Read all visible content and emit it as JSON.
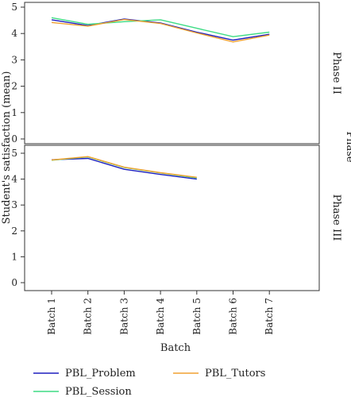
{
  "chart_data": {
    "type": "line",
    "xlabel": "Batch",
    "ylabel": "Student's satisfaction (mean)",
    "facet_label": "Phase",
    "categories": [
      "Batch 1",
      "Batch 2",
      "Batch 3",
      "Batch 4",
      "Batch 5",
      "Batch 6",
      "Batch 7"
    ],
    "ylim": [
      0,
      5
    ],
    "yticks": [
      "0",
      "1",
      "2",
      "3",
      "4",
      "5"
    ],
    "grid": false,
    "legend_position": "bottom",
    "panels": [
      {
        "label": "Phase II",
        "series": [
          {
            "name": "PBL_Problem",
            "color": "#1f1fbf",
            "values": [
              4.52,
              4.3,
              4.55,
              4.4,
              4.05,
              3.75,
              3.97
            ]
          },
          {
            "name": "PBL_Session",
            "color": "#3ddc84",
            "values": [
              4.6,
              4.35,
              4.45,
              4.52,
              4.2,
              3.88,
              4.05
            ]
          },
          {
            "name": "PBL_Tutors",
            "color": "#f0a030",
            "values": [
              4.42,
              4.28,
              4.53,
              4.38,
              4.02,
              3.68,
              3.94
            ]
          }
        ]
      },
      {
        "label": "Phase III",
        "series": [
          {
            "name": "PBL_Problem",
            "color": "#1f1fbf",
            "values": [
              4.75,
              4.8,
              4.38,
              4.18,
              4.0,
              null,
              null
            ]
          },
          {
            "name": "PBL_Session",
            "color": "#3ddc84",
            "values": [
              4.73,
              4.86,
              4.45,
              4.24,
              4.05,
              null,
              null
            ]
          },
          {
            "name": "PBL_Tutors",
            "color": "#f0a030",
            "values": [
              4.74,
              4.87,
              4.46,
              4.25,
              4.07,
              null,
              null
            ]
          }
        ]
      }
    ],
    "legend": [
      {
        "name": "PBL_Problem",
        "color": "#1f1fbf"
      },
      {
        "name": "PBL_Tutors",
        "color": "#f0a030"
      },
      {
        "name": "PBL_Session",
        "color": "#3ddc84"
      }
    ]
  }
}
